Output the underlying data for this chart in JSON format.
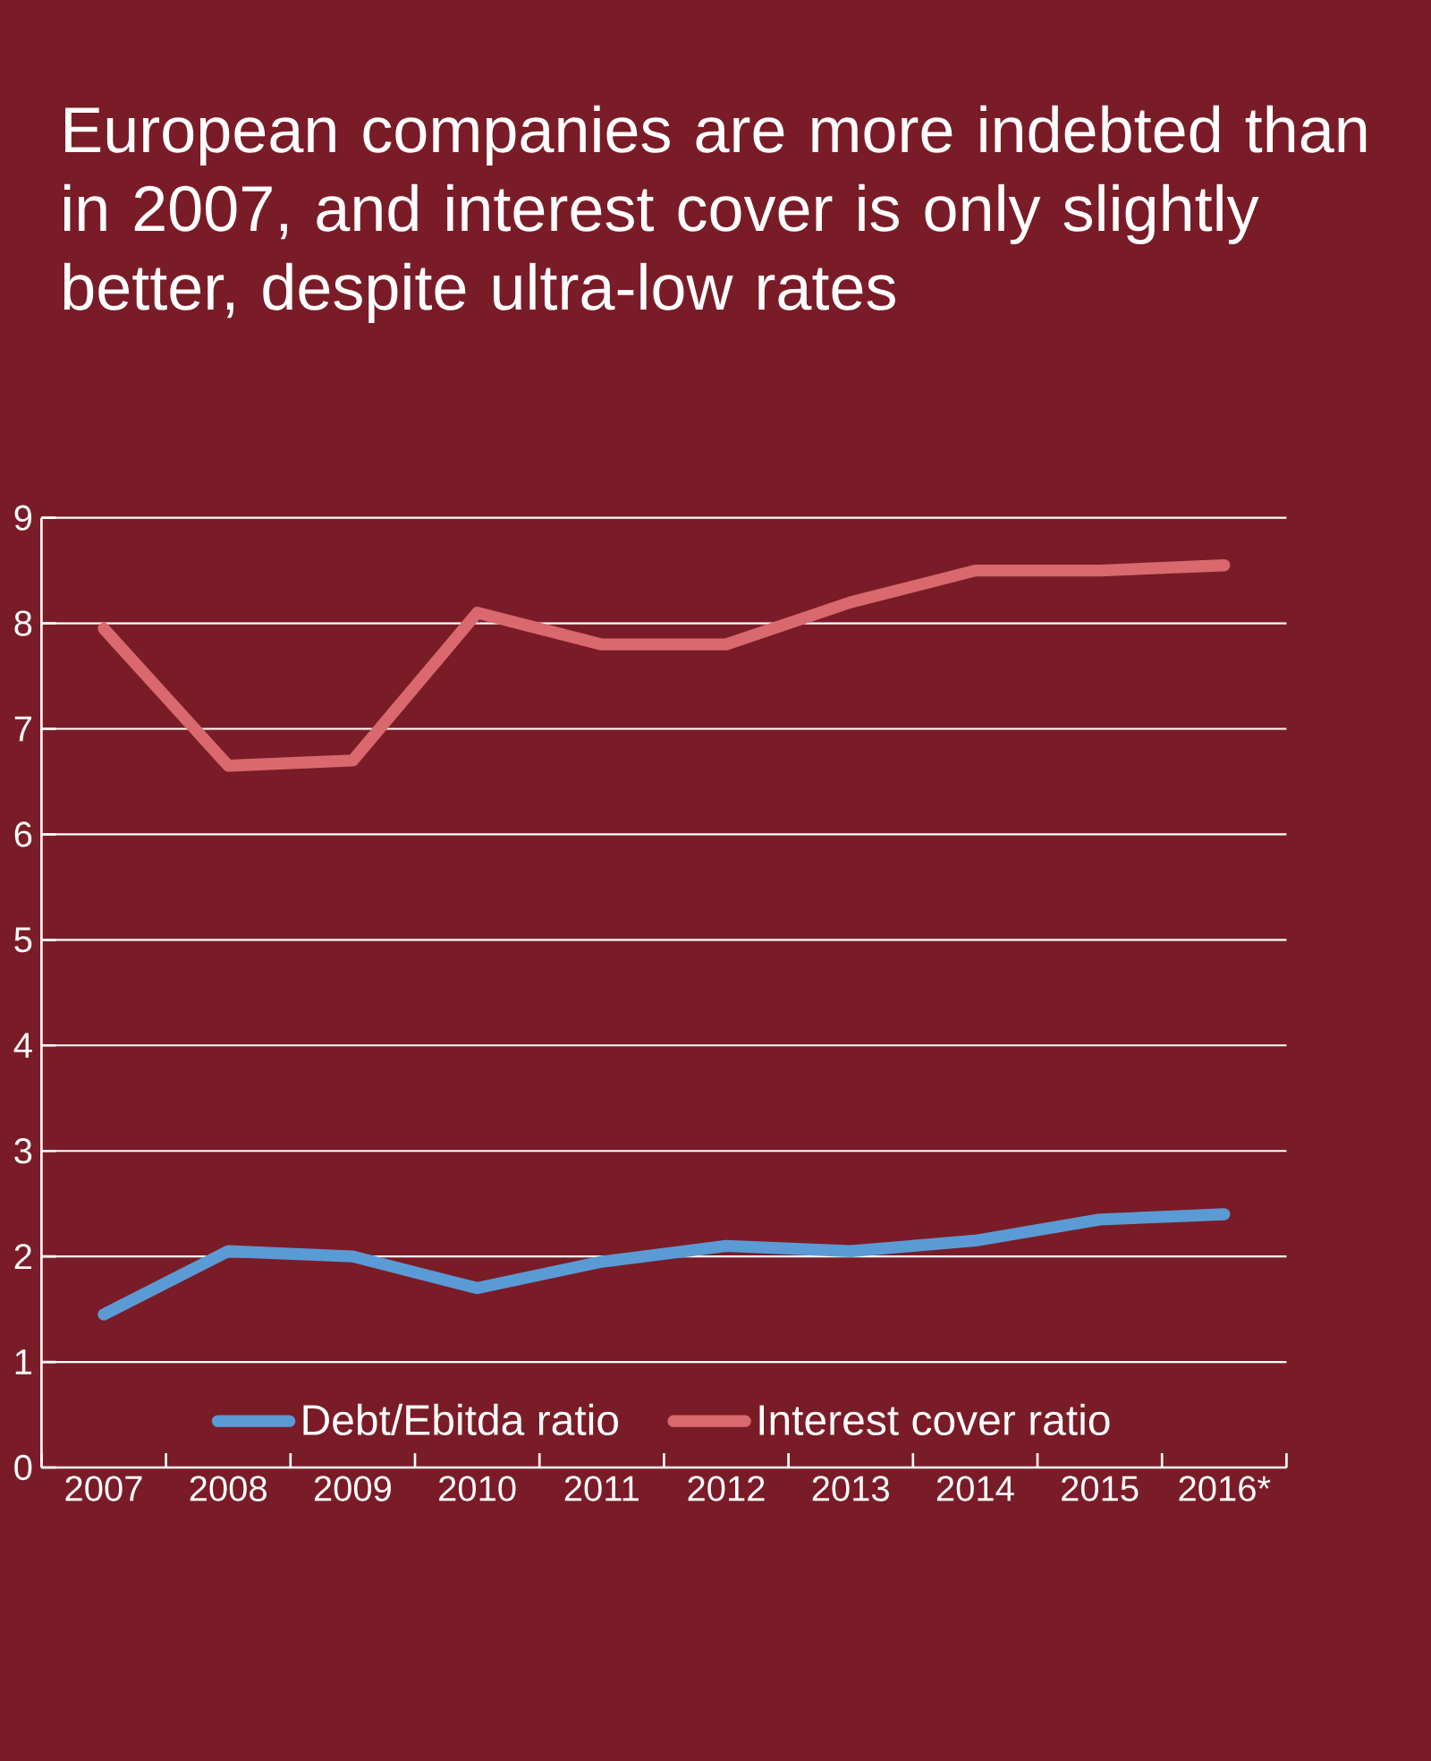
{
  "chart_data": {
    "type": "line",
    "title": "European companies are more indebted than in 2007, and interest cover is only slightly better, despite ultra-low rates",
    "categories": [
      "2007",
      "2008",
      "2009",
      "2010",
      "2011",
      "2012",
      "2013",
      "2014",
      "2015",
      "2016*"
    ],
    "series": [
      {
        "name": "Debt/Ebitda ratio",
        "color": "#5b9bd5",
        "values": [
          1.45,
          2.05,
          2.0,
          1.7,
          1.95,
          2.1,
          2.05,
          2.15,
          2.35,
          2.4
        ]
      },
      {
        "name": "Interest cover ratio",
        "color": "#d9696e",
        "values": [
          7.95,
          6.65,
          6.7,
          8.1,
          7.8,
          7.8,
          8.2,
          8.5,
          8.5,
          8.55
        ]
      }
    ],
    "ylim": [
      0,
      9
    ],
    "yticks": [
      0,
      1,
      2,
      3,
      4,
      5,
      6,
      7,
      8,
      9
    ],
    "grid": "y",
    "legend": "bottom"
  }
}
